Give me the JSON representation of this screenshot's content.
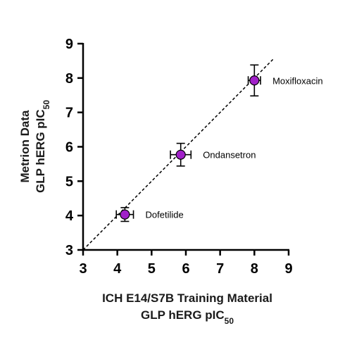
{
  "chart_data": {
    "type": "scatter",
    "xlim": [
      3,
      9
    ],
    "ylim": [
      3,
      9
    ],
    "x_ticks": [
      3,
      4,
      5,
      6,
      7,
      8,
      9
    ],
    "y_ticks": [
      3,
      4,
      5,
      6,
      7,
      8,
      9
    ],
    "xlabel_line1": "ICH E14/S7B Training Material",
    "xlabel_line2": "GLP hERG pIC",
    "xlabel_sub": "50",
    "ylabel_line1": "Metrion Data",
    "ylabel_line2": "GLP hERG pIC",
    "ylabel_sub": "50",
    "grid": false,
    "identity_line": {
      "from": [
        3,
        3
      ],
      "to": [
        8.55,
        8.55
      ],
      "style": "dashed"
    },
    "marker_color": "#a020c8",
    "points": [
      {
        "label": "Dofetilide",
        "x": 4.22,
        "y": 4.03,
        "x_err": 0.25,
        "y_err": 0.2
      },
      {
        "label": "Ondansetron",
        "x": 5.85,
        "y": 5.77,
        "x_err": 0.3,
        "y_err": 0.33
      },
      {
        "label": "Moxifloxacin",
        "x": 8.0,
        "y": 7.93,
        "x_err": 0.18,
        "y_err": 0.45
      }
    ]
  }
}
